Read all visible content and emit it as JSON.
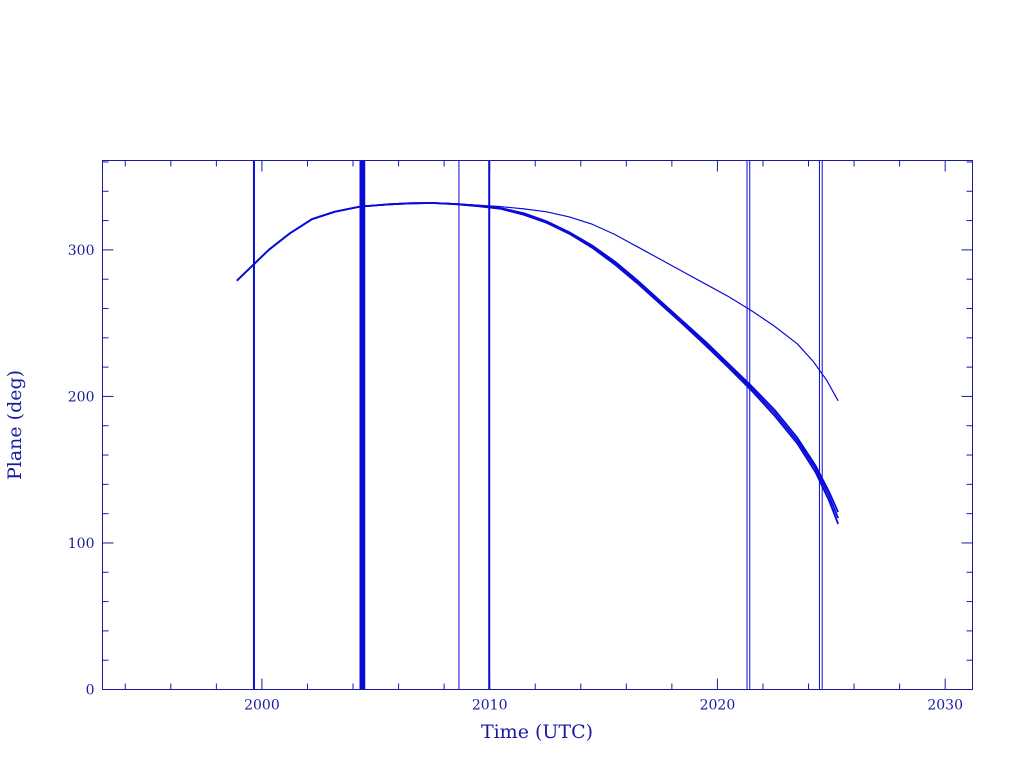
{
  "chart_data": {
    "type": "line",
    "title": "",
    "xlabel": "Time (UTC)",
    "ylabel": "Plane (deg)",
    "xlim": [
      1993,
      2031.2
    ],
    "ylim": [
      0,
      361
    ],
    "x_ticks": [
      2000,
      2010,
      2020,
      2030
    ],
    "y_ticks": [
      0,
      100,
      200,
      300
    ],
    "grid": false,
    "legend": "none",
    "colors": {
      "axis": "#1a1aa0",
      "curve": "#0a0ad8",
      "marker": "#0a0ad8"
    },
    "series": [
      {
        "values": [
          [
            1998.9,
            279
          ],
          [
            1999.5,
            288
          ],
          [
            2000.3,
            300
          ],
          [
            2001.2,
            311
          ],
          [
            2002.2,
            321
          ],
          [
            2003.2,
            326
          ],
          [
            2004.3,
            329.5
          ],
          [
            2005.5,
            331
          ],
          [
            2006.5,
            331.8
          ],
          [
            2007.5,
            332
          ],
          [
            2008.5,
            331.5
          ],
          [
            2009.5,
            330.5
          ],
          [
            2010.5,
            329.5
          ],
          [
            2011.5,
            328
          ],
          [
            2012.5,
            326
          ],
          [
            2013.5,
            322.5
          ],
          [
            2014.5,
            317.5
          ],
          [
            2015.5,
            310.5
          ],
          [
            2016.5,
            302
          ],
          [
            2017.5,
            293.5
          ],
          [
            2018.5,
            285
          ],
          [
            2019.5,
            276.5
          ],
          [
            2020.5,
            268
          ],
          [
            2021.5,
            258.5
          ],
          [
            2022.5,
            248
          ],
          [
            2023.5,
            236
          ],
          [
            2024.2,
            224
          ],
          [
            2024.8,
            211
          ],
          [
            2025.3,
            197
          ]
        ]
      },
      {
        "values": [
          [
            1998.9,
            279
          ],
          [
            1999.5,
            288
          ],
          [
            2000.3,
            300
          ],
          [
            2001.2,
            311
          ],
          [
            2002.2,
            321
          ],
          [
            2003.2,
            326
          ],
          [
            2004.3,
            329.5
          ],
          [
            2005.5,
            331
          ],
          [
            2006.5,
            331.8
          ],
          [
            2007.5,
            332
          ],
          [
            2008.5,
            331.3
          ],
          [
            2009.5,
            330.2
          ],
          [
            2010.5,
            328.5
          ],
          [
            2011.5,
            325
          ],
          [
            2012.5,
            319.5
          ],
          [
            2013.5,
            312
          ],
          [
            2014.5,
            303
          ],
          [
            2015.5,
            292
          ],
          [
            2016.5,
            279
          ],
          [
            2017.5,
            265
          ],
          [
            2018.5,
            251
          ],
          [
            2019.5,
            237
          ],
          [
            2020.5,
            222
          ],
          [
            2021.5,
            207
          ],
          [
            2022.5,
            191
          ],
          [
            2023.5,
            172
          ],
          [
            2024.3,
            153
          ],
          [
            2024.9,
            135
          ],
          [
            2025.3,
            121
          ]
        ]
      },
      {
        "values": [
          [
            1998.9,
            279
          ],
          [
            1999.5,
            288
          ],
          [
            2000.3,
            300
          ],
          [
            2001.2,
            311
          ],
          [
            2002.2,
            321
          ],
          [
            2003.2,
            326
          ],
          [
            2004.3,
            329.5
          ],
          [
            2005.5,
            331
          ],
          [
            2006.5,
            331.8
          ],
          [
            2007.5,
            332
          ],
          [
            2008.5,
            331.3
          ],
          [
            2009.5,
            330
          ],
          [
            2010.5,
            328.2
          ],
          [
            2011.5,
            324.5
          ],
          [
            2012.5,
            319
          ],
          [
            2013.5,
            311.5
          ],
          [
            2014.5,
            302
          ],
          [
            2015.5,
            291
          ],
          [
            2016.5,
            278
          ],
          [
            2017.5,
            264
          ],
          [
            2018.5,
            250
          ],
          [
            2019.5,
            236
          ],
          [
            2020.5,
            221
          ],
          [
            2021.5,
            205.5
          ],
          [
            2022.5,
            189
          ],
          [
            2023.5,
            170
          ],
          [
            2024.3,
            151
          ],
          [
            2024.9,
            132
          ],
          [
            2025.3,
            117
          ]
        ]
      },
      {
        "values": [
          [
            1998.9,
            279
          ],
          [
            1999.5,
            288
          ],
          [
            2000.3,
            300
          ],
          [
            2001.2,
            311
          ],
          [
            2002.2,
            321
          ],
          [
            2003.2,
            326
          ],
          [
            2004.3,
            329.5
          ],
          [
            2005.5,
            331
          ],
          [
            2006.5,
            331.8
          ],
          [
            2007.5,
            332
          ],
          [
            2008.5,
            331.2
          ],
          [
            2009.5,
            329.8
          ],
          [
            2010.5,
            328
          ],
          [
            2011.5,
            324
          ],
          [
            2012.5,
            318.5
          ],
          [
            2013.5,
            311
          ],
          [
            2014.5,
            301.5
          ],
          [
            2015.5,
            290
          ],
          [
            2016.5,
            277
          ],
          [
            2017.5,
            263
          ],
          [
            2018.5,
            249
          ],
          [
            2019.5,
            234.5
          ],
          [
            2020.5,
            219.5
          ],
          [
            2021.5,
            204
          ],
          [
            2022.5,
            187
          ],
          [
            2023.5,
            168
          ],
          [
            2024.3,
            148.5
          ],
          [
            2024.9,
            129
          ],
          [
            2025.3,
            113
          ]
        ]
      }
    ],
    "vertical_markers": [
      {
        "x": 1999.65,
        "weight": "medium"
      },
      {
        "x": 2004.35,
        "weight": "heavy"
      },
      {
        "x": 2004.47,
        "weight": "heavy"
      },
      {
        "x": 2008.65,
        "weight": "thin"
      },
      {
        "x": 2009.98,
        "weight": "medium"
      },
      {
        "x": 2021.3,
        "weight": "thin"
      },
      {
        "x": 2021.42,
        "weight": "thin"
      },
      {
        "x": 2024.48,
        "weight": "thin"
      },
      {
        "x": 2024.6,
        "weight": "thin"
      }
    ]
  }
}
